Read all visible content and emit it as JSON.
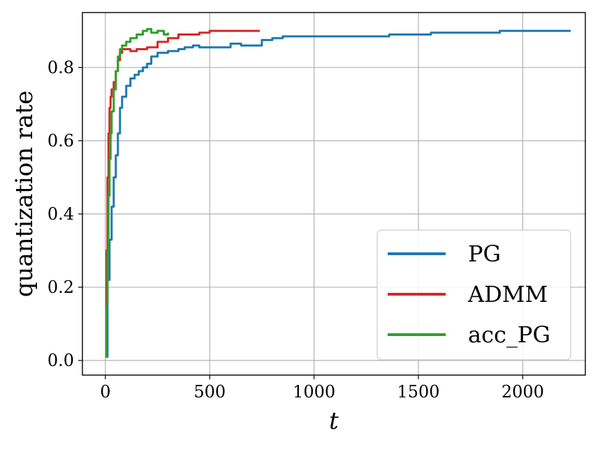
{
  "chart_data": {
    "type": "line",
    "title": "",
    "xlabel": "t",
    "ylabel": "quantization rate",
    "xlim": [
      -110,
      2300
    ],
    "ylim": [
      -0.04,
      0.95
    ],
    "xticks": [
      0,
      500,
      1000,
      1500,
      2000
    ],
    "yticks": [
      0.0,
      0.2,
      0.4,
      0.6,
      0.8
    ],
    "xtick_labels": [
      "0",
      "500",
      "1000",
      "1500",
      "2000"
    ],
    "ytick_labels": [
      "0.0",
      "0.2",
      "0.4",
      "0.6",
      "0.8"
    ],
    "grid": true,
    "legend_position": "lower-right",
    "series": [
      {
        "name": "PG",
        "color": "#1f77b4",
        "x": [
          0,
          10,
          20,
          30,
          40,
          50,
          60,
          70,
          80,
          100,
          120,
          140,
          160,
          180,
          200,
          220,
          250,
          300,
          350,
          380,
          420,
          450,
          500,
          550,
          600,
          650,
          700,
          750,
          800,
          850,
          1000,
          1350,
          1360,
          1550,
          1560,
          1880,
          1890,
          2230
        ],
        "y": [
          0.01,
          0.22,
          0.33,
          0.42,
          0.5,
          0.56,
          0.62,
          0.69,
          0.72,
          0.75,
          0.77,
          0.78,
          0.79,
          0.8,
          0.81,
          0.83,
          0.84,
          0.845,
          0.85,
          0.855,
          0.86,
          0.855,
          0.855,
          0.855,
          0.865,
          0.86,
          0.86,
          0.875,
          0.88,
          0.885,
          0.885,
          0.885,
          0.89,
          0.89,
          0.895,
          0.895,
          0.9,
          0.9
        ]
      },
      {
        "name": "ADMM",
        "color": "#d62728",
        "x": [
          0,
          5,
          10,
          15,
          20,
          25,
          30,
          40,
          50,
          60,
          70,
          80,
          100,
          120,
          150,
          200,
          250,
          300,
          350,
          400,
          450,
          500,
          600,
          700,
          740
        ],
        "y": [
          0.02,
          0.3,
          0.5,
          0.62,
          0.69,
          0.72,
          0.74,
          0.76,
          0.79,
          0.82,
          0.84,
          0.85,
          0.85,
          0.845,
          0.85,
          0.855,
          0.87,
          0.88,
          0.89,
          0.89,
          0.895,
          0.9,
          0.9,
          0.9,
          0.9
        ]
      },
      {
        "name": "acc_PG",
        "color": "#2ca02c",
        "x": [
          0,
          5,
          10,
          15,
          20,
          25,
          30,
          40,
          50,
          60,
          70,
          80,
          100,
          120,
          150,
          180,
          200,
          220,
          250,
          280,
          300
        ],
        "y": [
          0.01,
          0.15,
          0.3,
          0.45,
          0.55,
          0.62,
          0.68,
          0.74,
          0.79,
          0.83,
          0.85,
          0.86,
          0.87,
          0.88,
          0.89,
          0.9,
          0.905,
          0.895,
          0.9,
          0.89,
          0.895
        ]
      }
    ]
  }
}
